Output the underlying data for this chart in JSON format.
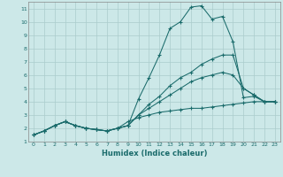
{
  "xlabel": "Humidex (Indice chaleur)",
  "background_color": "#cce8e8",
  "grid_color": "#aacccc",
  "line_color": "#1a6b6b",
  "xlim": [
    -0.5,
    23.5
  ],
  "ylim": [
    1,
    11.5
  ],
  "xticks": [
    0,
    1,
    2,
    3,
    4,
    5,
    6,
    7,
    8,
    9,
    10,
    11,
    12,
    13,
    14,
    15,
    16,
    17,
    18,
    19,
    20,
    21,
    22,
    23
  ],
  "yticks": [
    1,
    2,
    3,
    4,
    5,
    6,
    7,
    8,
    9,
    10,
    11
  ],
  "series": [
    {
      "x": [
        0,
        1,
        2,
        3,
        4,
        5,
        6,
        7,
        8,
        9,
        10,
        11,
        12,
        13,
        14,
        15,
        16,
        17,
        18,
        19,
        20,
        21,
        22,
        23
      ],
      "y": [
        1.5,
        1.8,
        2.2,
        2.5,
        2.2,
        2.0,
        1.9,
        1.8,
        2.0,
        2.2,
        4.2,
        5.8,
        7.5,
        9.5,
        10.0,
        11.1,
        11.2,
        10.2,
        10.4,
        8.5,
        4.3,
        4.4,
        4.0,
        4.0
      ]
    },
    {
      "x": [
        0,
        1,
        2,
        3,
        4,
        5,
        6,
        7,
        8,
        9,
        10,
        11,
        12,
        13,
        14,
        15,
        16,
        17,
        18,
        19,
        20,
        21,
        22,
        23
      ],
      "y": [
        1.5,
        1.8,
        2.2,
        2.5,
        2.2,
        2.0,
        1.9,
        1.8,
        2.0,
        2.2,
        3.0,
        3.8,
        4.4,
        5.2,
        5.8,
        6.2,
        6.8,
        7.2,
        7.5,
        7.5,
        5.0,
        4.5,
        4.0,
        4.0
      ]
    },
    {
      "x": [
        0,
        1,
        2,
        3,
        4,
        5,
        6,
        7,
        8,
        9,
        10,
        11,
        12,
        13,
        14,
        15,
        16,
        17,
        18,
        19,
        20,
        21,
        22,
        23
      ],
      "y": [
        1.5,
        1.8,
        2.2,
        2.5,
        2.2,
        2.0,
        1.9,
        1.8,
        2.0,
        2.2,
        3.0,
        3.5,
        4.0,
        4.5,
        5.0,
        5.5,
        5.8,
        6.0,
        6.2,
        6.0,
        5.0,
        4.5,
        4.0,
        4.0
      ]
    },
    {
      "x": [
        0,
        1,
        2,
        3,
        4,
        5,
        6,
        7,
        8,
        9,
        10,
        11,
        12,
        13,
        14,
        15,
        16,
        17,
        18,
        19,
        20,
        21,
        22,
        23
      ],
      "y": [
        1.5,
        1.8,
        2.2,
        2.5,
        2.2,
        2.0,
        1.9,
        1.8,
        2.0,
        2.5,
        2.8,
        3.0,
        3.2,
        3.3,
        3.4,
        3.5,
        3.5,
        3.6,
        3.7,
        3.8,
        3.9,
        4.0,
        4.0,
        4.0
      ]
    }
  ]
}
